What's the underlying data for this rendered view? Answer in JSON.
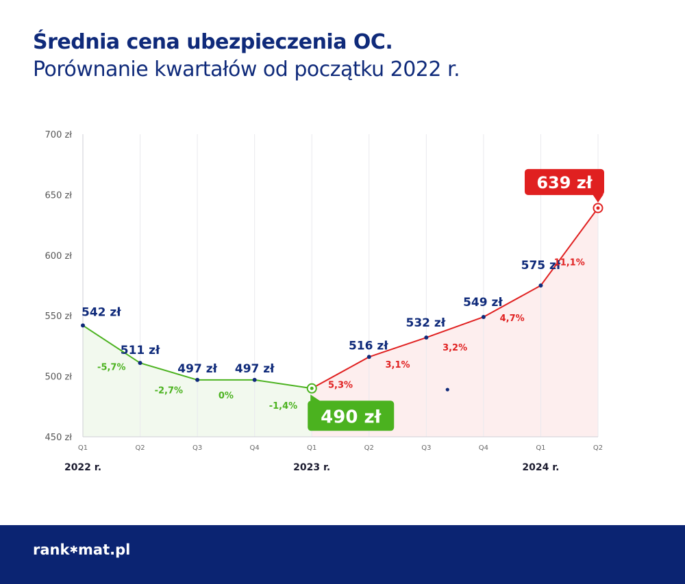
{
  "header": {
    "title": "Średnia cena ubezpieczenia OC.",
    "subtitle": "Porównanie kwartałów od początku 2022 r."
  },
  "chart_data": {
    "type": "line",
    "title": "Średnia cena ubezpieczenia OC.",
    "subtitle": "Porównanie kwartałów od początku 2022 r.",
    "xlabel": "",
    "ylabel": "",
    "ylim": [
      450,
      700
    ],
    "y_ticks": [
      "450 zł",
      "500 zł",
      "550 zł",
      "600 zł",
      "650 zł",
      "700 zł"
    ],
    "y_tick_values": [
      450,
      500,
      550,
      600,
      650,
      700
    ],
    "categories": [
      "Q1",
      "Q2",
      "Q3",
      "Q4",
      "Q1",
      "Q2",
      "Q3",
      "Q4",
      "Q1",
      "Q2"
    ],
    "year_labels": [
      {
        "label": "2022 r.",
        "at_index": 0
      },
      {
        "label": "2023 r.",
        "at_index": 4
      },
      {
        "label": "2024 r.",
        "at_index": 8
      }
    ],
    "values": [
      542,
      511,
      497,
      497,
      490,
      516,
      532,
      549,
      575,
      639
    ],
    "value_labels": [
      "542 zł",
      "511 zł",
      "497 zł",
      "497 zł",
      "490 zł",
      "516 zł",
      "532 zł",
      "549 zł",
      "575 zł",
      "639 zł"
    ],
    "pct_changes": [
      "-5,7%",
      "-2,7%",
      "0%",
      "-1,4%",
      "5,3%",
      "3,1%",
      "3,2%",
      "4,7%",
      "11,1%"
    ],
    "min_index": 4,
    "max_index": 9,
    "stray_point": {
      "x": 6.37,
      "y": 489
    },
    "grid": "vertical",
    "colors": {
      "decrease": "#4bb21f",
      "increase": "#e02020",
      "label": "#0f2a7a",
      "axis_text": "#555555",
      "fill_decrease": "#f2f9ee",
      "fill_increase": "#fdeeee"
    }
  },
  "footer": {
    "logo_pre": "rank",
    "logo_post": "mat.pl",
    "logo_mark": "✱",
    "background": "#0b2472"
  }
}
